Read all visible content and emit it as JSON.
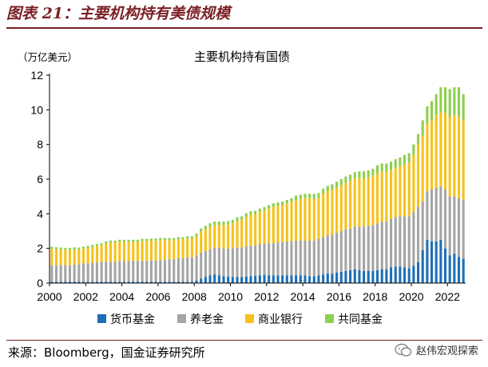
{
  "figure": {
    "title": "图表 21：主要机构持有美债规模",
    "source": "来源：Bloomberg，国金证券研究所",
    "watermark": "赵伟宏观探索"
  },
  "chart_data": {
    "type": "bar",
    "stacked": true,
    "title": "主要机构持有国债",
    "unit_label": "（万亿美元）",
    "xlabel": "",
    "ylabel": "",
    "ylim": [
      0,
      12
    ],
    "yticks": [
      0,
      2,
      4,
      6,
      8,
      10,
      12
    ],
    "xticks": [
      "2000",
      "2002",
      "2004",
      "2006",
      "2008",
      "2010",
      "2012",
      "2014",
      "2016",
      "2018",
      "2020",
      "2022"
    ],
    "x_period_per_bar": "quarter",
    "x_start": 2000.0,
    "grid": false,
    "legend_position": "bottom",
    "series": [
      {
        "name": "货币基金",
        "color": "#1f6fb5",
        "values": [
          0.08,
          0.08,
          0.08,
          0.08,
          0.08,
          0.08,
          0.08,
          0.08,
          0.08,
          0.08,
          0.08,
          0.08,
          0.08,
          0.08,
          0.08,
          0.08,
          0.08,
          0.08,
          0.08,
          0.08,
          0.08,
          0.08,
          0.08,
          0.08,
          0.08,
          0.08,
          0.08,
          0.08,
          0.08,
          0.08,
          0.08,
          0.08,
          0.15,
          0.25,
          0.35,
          0.45,
          0.5,
          0.45,
          0.4,
          0.38,
          0.35,
          0.35,
          0.35,
          0.38,
          0.4,
          0.42,
          0.45,
          0.48,
          0.45,
          0.45,
          0.45,
          0.45,
          0.45,
          0.45,
          0.45,
          0.45,
          0.45,
          0.4,
          0.4,
          0.45,
          0.5,
          0.55,
          0.55,
          0.6,
          0.65,
          0.7,
          0.75,
          0.8,
          0.75,
          0.7,
          0.7,
          0.7,
          0.75,
          0.8,
          0.8,
          0.9,
          0.95,
          0.95,
          0.9,
          0.85,
          1.0,
          1.2,
          1.9,
          2.5,
          2.4,
          2.4,
          2.5,
          2.0,
          1.6,
          1.7,
          1.5,
          1.4
        ]
      },
      {
        "name": "养老金",
        "color": "#a5a5a5",
        "values": [
          0.95,
          0.95,
          0.95,
          0.95,
          0.95,
          1.0,
          1.0,
          1.05,
          1.05,
          1.1,
          1.1,
          1.15,
          1.15,
          1.15,
          1.15,
          1.2,
          1.2,
          1.2,
          1.2,
          1.2,
          1.2,
          1.2,
          1.22,
          1.22,
          1.25,
          1.25,
          1.3,
          1.3,
          1.35,
          1.35,
          1.4,
          1.4,
          1.45,
          1.5,
          1.5,
          1.5,
          1.55,
          1.6,
          1.6,
          1.6,
          1.65,
          1.7,
          1.7,
          1.75,
          1.75,
          1.75,
          1.8,
          1.8,
          1.85,
          1.85,
          1.9,
          1.9,
          1.95,
          1.95,
          2.0,
          2.0,
          2.0,
          2.05,
          2.05,
          2.1,
          2.15,
          2.2,
          2.25,
          2.3,
          2.35,
          2.4,
          2.4,
          2.45,
          2.5,
          2.55,
          2.6,
          2.65,
          2.7,
          2.75,
          2.75,
          2.8,
          2.85,
          2.9,
          2.95,
          3.0,
          3.1,
          3.2,
          2.8,
          2.8,
          3.0,
          3.1,
          3.1,
          3.4,
          3.4,
          3.3,
          3.4,
          3.4
        ]
      },
      {
        "name": "商业银行",
        "color": "#f7c21a",
        "values": [
          0.95,
          0.92,
          0.9,
          0.88,
          0.88,
          0.86,
          0.85,
          0.85,
          0.9,
          0.9,
          0.95,
          0.95,
          1.05,
          1.1,
          1.1,
          1.1,
          1.1,
          1.1,
          1.1,
          1.1,
          1.15,
          1.15,
          1.15,
          1.15,
          1.15,
          1.15,
          1.1,
          1.1,
          1.1,
          1.1,
          1.1,
          1.1,
          1.1,
          1.2,
          1.25,
          1.3,
          1.3,
          1.3,
          1.35,
          1.4,
          1.45,
          1.55,
          1.6,
          1.7,
          1.8,
          1.8,
          1.85,
          1.9,
          2.0,
          2.1,
          2.1,
          2.15,
          2.2,
          2.3,
          2.35,
          2.4,
          2.45,
          2.45,
          2.4,
          2.35,
          2.5,
          2.55,
          2.6,
          2.6,
          2.65,
          2.7,
          2.75,
          2.8,
          2.8,
          2.8,
          2.8,
          2.85,
          2.9,
          2.9,
          2.85,
          2.8,
          2.85,
          2.9,
          3.0,
          3.1,
          3.3,
          3.6,
          3.8,
          3.9,
          4.0,
          4.2,
          4.3,
          4.4,
          4.6,
          4.7,
          4.7,
          4.6
        ]
      },
      {
        "name": "共同基金",
        "color": "#8fcf4f",
        "values": [
          0.12,
          0.12,
          0.12,
          0.12,
          0.12,
          0.12,
          0.12,
          0.12,
          0.12,
          0.12,
          0.12,
          0.12,
          0.12,
          0.12,
          0.12,
          0.12,
          0.12,
          0.12,
          0.12,
          0.12,
          0.12,
          0.12,
          0.12,
          0.12,
          0.12,
          0.12,
          0.12,
          0.12,
          0.12,
          0.12,
          0.12,
          0.12,
          0.15,
          0.2,
          0.2,
          0.2,
          0.2,
          0.2,
          0.2,
          0.2,
          0.2,
          0.2,
          0.2,
          0.2,
          0.2,
          0.2,
          0.2,
          0.2,
          0.2,
          0.2,
          0.2,
          0.2,
          0.2,
          0.2,
          0.25,
          0.25,
          0.25,
          0.25,
          0.3,
          0.3,
          0.3,
          0.3,
          0.3,
          0.35,
          0.35,
          0.35,
          0.35,
          0.35,
          0.4,
          0.4,
          0.4,
          0.4,
          0.45,
          0.45,
          0.5,
          0.5,
          0.5,
          0.5,
          0.55,
          0.55,
          0.6,
          0.6,
          0.9,
          1.0,
          1.1,
          1.2,
          1.4,
          1.5,
          1.6,
          1.6,
          1.7,
          1.5
        ]
      }
    ]
  }
}
